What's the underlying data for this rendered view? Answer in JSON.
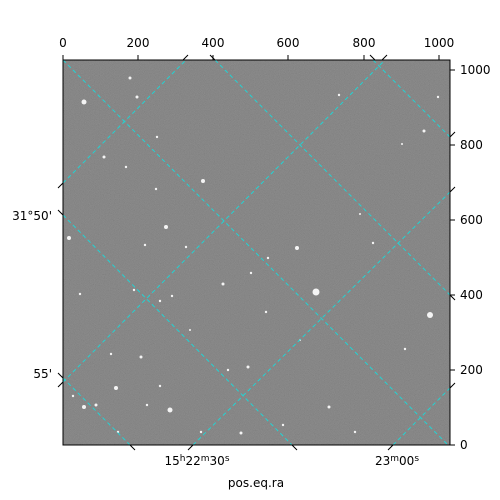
{
  "plot": {
    "xlabel_bottom": "pos.eq.ra",
    "image_description_colors": {
      "background": "#6b6b6b",
      "grid": "#22d3d3"
    }
  },
  "axes": {
    "top_ticks": [
      "0",
      "200",
      "400",
      "600",
      "800",
      "1000"
    ],
    "right_ticks": [
      "0",
      "200",
      "400",
      "600",
      "800",
      "1000"
    ],
    "left_ticks": [
      {
        "main": "31°50'"
      },
      {
        "main": "55'"
      }
    ],
    "bottom_ticks": [
      {
        "label": "15h22m30s"
      },
      {
        "label": "23m00s"
      }
    ]
  }
}
